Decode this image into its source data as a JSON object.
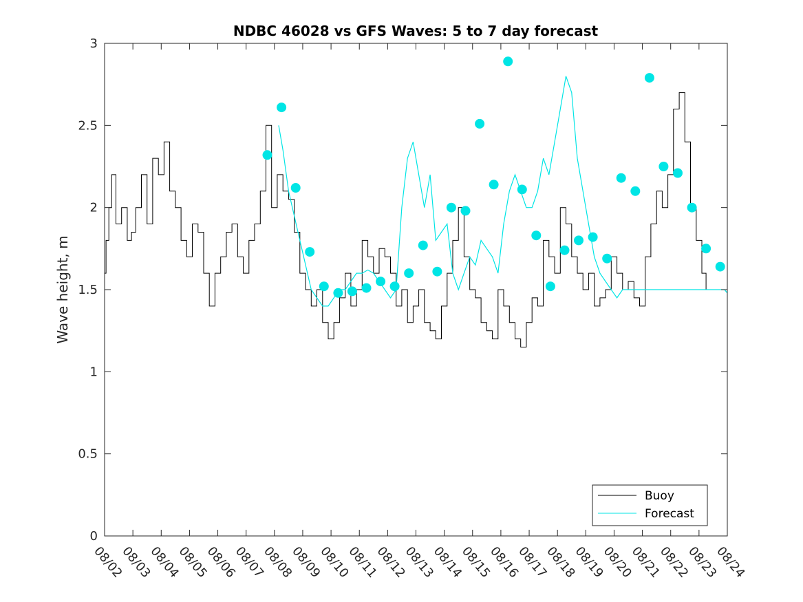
{
  "chart_data": {
    "type": "line",
    "title": "NDBC 46028 vs GFS Waves: 5 to 7 day forecast",
    "xlabel": "",
    "ylabel": "Wave height, m",
    "xlim": [
      0,
      22
    ],
    "ylim": [
      0,
      3
    ],
    "x_tick_labels": [
      "08/02",
      "08/03",
      "08/04",
      "08/05",
      "08/06",
      "08/07",
      "08/08",
      "08/09",
      "08/10",
      "08/11",
      "08/12",
      "08/13",
      "08/14",
      "08/15",
      "08/16",
      "08/17",
      "08/18",
      "08/19",
      "08/20",
      "08/21",
      "08/22",
      "08/23",
      "08/24"
    ],
    "y_ticks": [
      0,
      0.5,
      1,
      1.5,
      2,
      2.5,
      3
    ],
    "y_tick_labels": [
      "0",
      "0.5",
      "1",
      "1.5",
      "2",
      "2.5",
      "3"
    ],
    "grid": false,
    "legend": {
      "position": "bottom-right",
      "entries": [
        "Buoy",
        "Forecast"
      ]
    },
    "colors": {
      "buoy": "#000000",
      "forecast": "#00e5e5",
      "axes": "#262626"
    },
    "series": [
      {
        "name": "Buoy",
        "x": [
          0,
          0.1,
          0.2,
          0.3,
          0.5,
          0.7,
          0.9,
          1.0,
          1.2,
          1.4,
          1.6,
          1.8,
          2.0,
          2.2,
          2.4,
          2.6,
          2.8,
          3.0,
          3.2,
          3.4,
          3.6,
          3.8,
          4.0,
          4.2,
          4.4,
          4.6,
          4.8,
          5.0,
          5.2,
          5.4,
          5.6,
          5.8,
          6.0,
          6.2,
          6.4,
          6.6,
          6.8,
          7.0,
          7.2,
          7.4,
          7.6,
          7.8,
          8.0,
          8.2,
          8.4,
          8.6,
          8.8,
          9.0,
          9.2,
          9.4,
          9.6,
          9.8,
          10.0,
          10.2,
          10.4,
          10.6,
          10.8,
          11.0,
          11.2,
          11.4,
          11.6,
          11.8,
          12.0,
          12.2,
          12.4,
          12.6,
          12.8,
          13.0,
          13.2,
          13.4,
          13.6,
          13.8,
          14.0,
          14.2,
          14.4,
          14.6,
          14.8,
          15.0,
          15.2,
          15.4,
          15.6,
          15.8,
          16.0,
          16.2,
          16.4,
          16.6,
          16.8,
          17.0,
          17.2,
          17.4,
          17.6,
          17.8,
          18.0,
          18.2,
          18.4,
          18.6,
          18.8,
          19.0,
          19.2,
          19.4,
          19.6,
          19.8,
          20.0,
          20.2,
          20.4,
          20.6,
          20.8,
          21.0,
          21.2,
          21.3
        ],
        "values": [
          1.6,
          1.8,
          2.0,
          2.2,
          1.9,
          2.0,
          1.8,
          1.85,
          2.0,
          2.2,
          1.9,
          2.3,
          2.2,
          2.4,
          2.1,
          2.0,
          1.8,
          1.7,
          1.9,
          1.85,
          1.6,
          1.4,
          1.6,
          1.7,
          1.85,
          1.9,
          1.7,
          1.6,
          1.8,
          1.9,
          2.1,
          2.5,
          2.0,
          2.2,
          2.1,
          2.05,
          1.85,
          1.6,
          1.5,
          1.4,
          1.5,
          1.3,
          1.2,
          1.3,
          1.45,
          1.6,
          1.4,
          1.5,
          1.8,
          1.7,
          1.6,
          1.75,
          1.7,
          1.6,
          1.4,
          1.5,
          1.3,
          1.4,
          1.5,
          1.3,
          1.25,
          1.2,
          1.4,
          1.6,
          1.8,
          2.0,
          1.7,
          1.5,
          1.45,
          1.3,
          1.25,
          1.2,
          1.5,
          1.4,
          1.3,
          1.2,
          1.15,
          1.3,
          1.45,
          1.4,
          1.8,
          1.7,
          1.6,
          2.0,
          1.9,
          1.7,
          1.6,
          1.5,
          1.6,
          1.4,
          1.45,
          1.5,
          1.7,
          1.6,
          1.5,
          1.55,
          1.45,
          1.4,
          1.7,
          1.9,
          2.1,
          2.0,
          2.2,
          2.6,
          2.7,
          2.4,
          2.0,
          1.8,
          1.6,
          1.5
        ]
      },
      {
        "name": "Forecast",
        "runs": [
          {
            "x": [
              6.15,
              6.3,
              6.5,
              6.7,
              6.9,
              7.1,
              7.3,
              7.5,
              7.7,
              7.9,
              8.1,
              8.3,
              8.5,
              8.7,
              8.9,
              9.1,
              9.3,
              9.5,
              9.7,
              9.9,
              10.1,
              10.3,
              10.5,
              10.7,
              10.9,
              11.1,
              11.3,
              11.5,
              11.7,
              11.9,
              12.1,
              12.3,
              12.5,
              12.7,
              12.9,
              13.1,
              13.3,
              13.5,
              13.7,
              13.9,
              14.1,
              14.3,
              14.5,
              14.7,
              14.9,
              15.1,
              15.3,
              15.5,
              15.7,
              15.9,
              16.1,
              16.3,
              16.5,
              16.7,
              16.9,
              17.1,
              17.3,
              17.5,
              17.7,
              17.9,
              18.1,
              18.3,
              18.5,
              18.7,
              18.9,
              19.1,
              19.3,
              19.5,
              19.7,
              19.9,
              20.1,
              20.3,
              20.5,
              20.7,
              20.9,
              21.1,
              21.3,
              21.5,
              21.7,
              21.9,
              22.0
            ],
            "values": [
              2.5,
              2.35,
              2.1,
              1.95,
              1.8,
              1.65,
              1.5,
              1.45,
              1.4,
              1.4,
              1.45,
              1.5,
              1.5,
              1.55,
              1.6,
              1.6,
              1.62,
              1.6,
              1.55,
              1.5,
              1.45,
              1.5,
              2.0,
              2.3,
              2.4,
              2.2,
              2.0,
              2.2,
              1.8,
              1.85,
              1.9,
              1.6,
              1.5,
              1.6,
              1.7,
              1.65,
              1.8,
              1.75,
              1.7,
              1.6,
              1.9,
              2.1,
              2.2,
              2.1,
              2.0,
              2.0,
              2.1,
              2.3,
              2.2,
              2.4,
              2.6,
              2.8,
              2.7,
              2.3,
              2.1,
              1.9,
              1.7,
              1.6,
              1.55,
              1.5,
              1.45,
              1.5,
              1.5,
              1.5,
              1.5,
              1.5,
              1.5,
              1.5,
              1.5,
              1.5,
              1.5,
              1.5,
              1.5,
              1.5,
              1.5,
              1.5,
              1.5,
              1.5,
              1.5,
              1.5,
              1.48
            ]
          }
        ],
        "markers": {
          "x": [
            5.75,
            6.25,
            6.75,
            7.25,
            7.75,
            8.25,
            8.75,
            9.25,
            9.75,
            10.25,
            10.75,
            11.25,
            11.75,
            12.25,
            12.75,
            13.25,
            13.75,
            14.25,
            14.75,
            15.25,
            15.75,
            16.25,
            16.75,
            17.25,
            17.75,
            18.25,
            18.75,
            19.25,
            19.75,
            20.25,
            20.75,
            21.25,
            21.75
          ],
          "values": [
            2.32,
            2.61,
            2.12,
            1.73,
            1.52,
            1.48,
            1.49,
            1.51,
            1.55,
            1.52,
            1.6,
            1.77,
            1.61,
            2.0,
            1.98,
            2.51,
            2.14,
            2.89,
            2.11,
            1.83,
            1.52,
            1.74,
            1.8,
            1.82,
            1.69,
            2.18,
            2.1,
            2.79,
            2.25,
            2.21,
            2.0,
            1.75,
            1.64
          ]
        }
      }
    ]
  }
}
